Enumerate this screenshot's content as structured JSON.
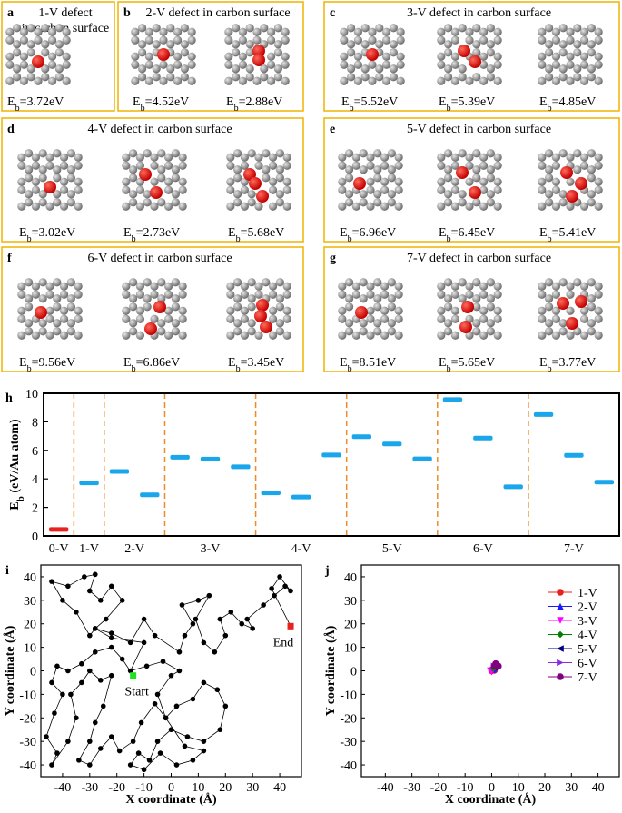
{
  "eb_symbol": "E",
  "eb_sub": "b",
  "panels": [
    {
      "letter": "a",
      "title": [
        "1-V defect",
        "in carbon surface"
      ],
      "energies": [
        "=3.72eV"
      ]
    },
    {
      "letter": "b",
      "title": [
        "2-V defect in carbon surface"
      ],
      "energies": [
        "=4.52eV",
        "=2.88eV"
      ]
    },
    {
      "letter": "c",
      "title": [
        "3-V defect in carbon surface"
      ],
      "energies": [
        "=5.52eV",
        "=5.39eV",
        "=4.85eV"
      ]
    },
    {
      "letter": "d",
      "title": [
        "4-V defect in carbon surface"
      ],
      "energies": [
        "=3.02eV",
        "=2.73eV",
        "=5.68eV"
      ]
    },
    {
      "letter": "e",
      "title": [
        "5-V defect in carbon surface"
      ],
      "energies": [
        "=6.96eV",
        "=6.45eV",
        "=5.41eV"
      ]
    },
    {
      "letter": "f",
      "title": [
        "6-V defect in carbon surface"
      ],
      "energies": [
        "=9.56eV",
        "=6.86eV",
        "=3.45eV"
      ]
    },
    {
      "letter": "g",
      "title": [
        "7-V defect in carbon surface"
      ],
      "energies": [
        "=8.51eV",
        "=5.65eV",
        "=3.77eV"
      ]
    }
  ],
  "chart_data": [
    {
      "type": "dash",
      "panel": "h",
      "ylabel_main": "E",
      "ylabel_sub": "b",
      "ylabel_rest": " (eV/Au atom)",
      "ylim": [
        0,
        10
      ],
      "yticks": [
        0,
        2,
        4,
        6,
        8,
        10
      ],
      "separator_color": "#f08a24",
      "groups": [
        {
          "name": "0-V",
          "color": "#e8211e",
          "values": [
            0.45
          ]
        },
        {
          "name": "1-V",
          "color": "#1aa6ea",
          "values": [
            3.72
          ]
        },
        {
          "name": "2-V",
          "color": "#1aa6ea",
          "values": [
            4.52,
            2.88
          ]
        },
        {
          "name": "3-V",
          "color": "#1aa6ea",
          "values": [
            5.52,
            5.39,
            4.85
          ]
        },
        {
          "name": "4-V",
          "color": "#1aa6ea",
          "values": [
            3.02,
            2.73,
            5.68
          ]
        },
        {
          "name": "5-V",
          "color": "#1aa6ea",
          "values": [
            6.96,
            6.45,
            5.41
          ]
        },
        {
          "name": "6-V",
          "color": "#1aa6ea",
          "values": [
            9.56,
            6.86,
            3.45
          ]
        },
        {
          "name": "7-V",
          "color": "#1aa6ea",
          "values": [
            8.51,
            5.65,
            3.77
          ]
        }
      ]
    },
    {
      "type": "line",
      "panel": "i",
      "xlabel": "X coordinate (Å)",
      "ylabel": "Y coordinate (Å)",
      "color": "#000000",
      "xlim": [
        -48,
        48
      ],
      "ylim": [
        -45,
        45
      ],
      "xticks": [
        -40,
        -30,
        -20,
        -10,
        0,
        10,
        20,
        30,
        40
      ],
      "yticks": [
        -40,
        -30,
        -20,
        -10,
        0,
        10,
        20,
        30,
        40
      ],
      "x": [
        -14,
        -18,
        -22,
        -28,
        -33,
        -38,
        -42,
        -44,
        -40,
        -43,
        -46,
        -42,
        -44,
        -38,
        -35,
        -37,
        -33,
        -30,
        -26,
        -22,
        -25,
        -28,
        -30,
        -34,
        -30,
        -26,
        -22,
        -19,
        -14,
        -11,
        -6,
        -2,
        2,
        8,
        12,
        17,
        20,
        18,
        12,
        6,
        0,
        -5,
        -8,
        -12,
        -15,
        -10,
        -4,
        2,
        8,
        12,
        5,
        -2,
        -5,
        0,
        3,
        -3,
        -9,
        -15,
        -10,
        -22,
        -28,
        -30,
        -35,
        -40,
        -44,
        -38,
        -32,
        -28,
        -30,
        -26,
        -22,
        -18,
        -24,
        -28,
        -22,
        -15,
        -10,
        -6,
        3,
        5,
        8,
        4,
        10,
        14,
        9,
        12,
        16,
        20,
        18,
        22,
        26,
        30,
        28,
        34,
        38,
        42,
        44,
        40,
        37,
        44
      ],
      "y": [
        -2,
        5,
        10,
        8,
        3,
        0,
        2,
        -5,
        -10,
        -18,
        -28,
        -35,
        -40,
        -30,
        -20,
        -10,
        -5,
        0,
        -4,
        -2,
        -15,
        -22,
        -30,
        -38,
        -40,
        -33,
        -28,
        -34,
        -30,
        -22,
        -14,
        -20,
        -15,
        -12,
        -5,
        -8,
        -15,
        -25,
        -30,
        -28,
        -25,
        -30,
        -38,
        -35,
        -40,
        -42,
        -35,
        -40,
        -38,
        -34,
        -32,
        -20,
        -10,
        -2,
        0,
        4,
        2,
        0,
        12,
        14,
        18,
        15,
        25,
        30,
        38,
        36,
        40,
        41,
        34,
        30,
        36,
        30,
        22,
        18,
        16,
        12,
        22,
        15,
        8,
        15,
        20,
        28,
        30,
        32,
        22,
        12,
        8,
        15,
        22,
        25,
        20,
        18,
        22,
        28,
        32,
        36,
        34,
        40,
        35,
        19
      ],
      "annotations": [
        {
          "text": "Start",
          "x": -14,
          "y": -2,
          "color": "#22e022"
        },
        {
          "text": "End",
          "x": 44,
          "y": 19,
          "color": "#e8211e"
        }
      ]
    },
    {
      "type": "scatter",
      "panel": "j",
      "xlabel": "X coordinate (Å)",
      "ylabel": "Y coordinate (Å)",
      "xlim": [
        -49,
        48
      ],
      "ylim": [
        -45,
        45
      ],
      "xticks": [
        -40,
        -30,
        -20,
        -10,
        0,
        10,
        20,
        30,
        40
      ],
      "yticks": [
        -40,
        -30,
        -20,
        -10,
        0,
        10,
        20,
        30,
        40
      ],
      "legend": "upper right",
      "series": [
        {
          "name": "1-V",
          "color": "#e8211e",
          "marker": "circle",
          "x": [
            0,
            0.5,
            1
          ],
          "y": [
            0,
            0.5,
            0.2
          ]
        },
        {
          "name": "2-V",
          "color": "#1a1aff",
          "marker": "triangle-up",
          "x": [
            0.2,
            0.8
          ],
          "y": [
            0.5,
            1
          ]
        },
        {
          "name": "3-V",
          "color": "#ff00ff",
          "marker": "triangle-down",
          "x": [
            -0.5,
            0,
            0.5
          ],
          "y": [
            0,
            -0.5,
            0.3
          ]
        },
        {
          "name": "4-V",
          "color": "#008000",
          "marker": "diamond",
          "x": [
            0.5,
            1.5
          ],
          "y": [
            1,
            1.5
          ]
        },
        {
          "name": "5-V",
          "color": "#000080",
          "marker": "triangle-left",
          "x": [
            1,
            1.5
          ],
          "y": [
            1.5,
            2
          ]
        },
        {
          "name": "6-V",
          "color": "#8a2be2",
          "marker": "triangle-right",
          "x": [
            1,
            2
          ],
          "y": [
            2,
            2.5
          ]
        },
        {
          "name": "7-V",
          "color": "#800080",
          "marker": "circle",
          "x": [
            1,
            1.5,
            2,
            2.5
          ],
          "y": [
            2,
            3,
            2.5,
            2
          ]
        }
      ]
    }
  ]
}
